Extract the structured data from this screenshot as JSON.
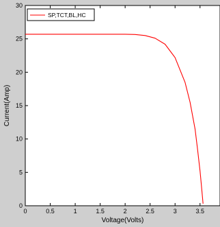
{
  "chart_data": {
    "type": "line",
    "title": "",
    "xlabel": "Voltage(Volts)",
    "ylabel": "Current(Amp)",
    "xlim": [
      0,
      3.9
    ],
    "ylim": [
      0,
      30
    ],
    "x_ticks": [
      0,
      0.5,
      1,
      1.5,
      2,
      2.5,
      3,
      3.5
    ],
    "x_tick_labels": [
      "0",
      "0.5",
      "1",
      "1.5",
      "2",
      "2.5",
      "3",
      "3.5"
    ],
    "y_ticks": [
      0,
      5,
      10,
      15,
      20,
      25,
      30
    ],
    "y_tick_labels": [
      "0",
      "5",
      "10",
      "15",
      "20",
      "25",
      "30"
    ],
    "grid": false,
    "legend_position": "top-left",
    "series": [
      {
        "name": "SP,TCT,BL,HC",
        "color": "#ff0000",
        "x": [
          0,
          0.5,
          1,
          1.5,
          2,
          2.2,
          2.4,
          2.6,
          2.8,
          3.0,
          3.2,
          3.3,
          3.4,
          3.45,
          3.5,
          3.53,
          3.56
        ],
        "y": [
          25.7,
          25.7,
          25.7,
          25.7,
          25.7,
          25.65,
          25.5,
          25.1,
          24.2,
          22.2,
          18.5,
          15.5,
          11.5,
          8.5,
          5.2,
          2.8,
          0.3
        ]
      }
    ]
  }
}
